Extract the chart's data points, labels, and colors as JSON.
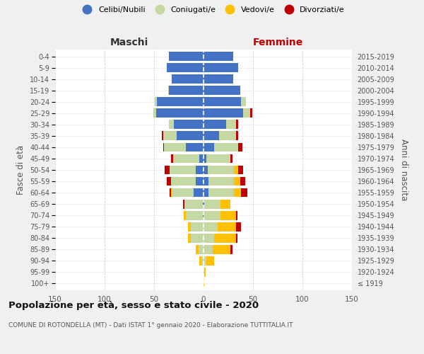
{
  "age_groups": [
    "100+",
    "95-99",
    "90-94",
    "85-89",
    "80-84",
    "75-79",
    "70-74",
    "65-69",
    "60-64",
    "55-59",
    "50-54",
    "45-49",
    "40-44",
    "35-39",
    "30-34",
    "25-29",
    "20-24",
    "15-19",
    "10-14",
    "5-9",
    "0-4"
  ],
  "birth_years": [
    "≤ 1919",
    "1920-1924",
    "1925-1929",
    "1930-1934",
    "1935-1939",
    "1940-1944",
    "1945-1949",
    "1950-1954",
    "1955-1959",
    "1960-1964",
    "1965-1969",
    "1970-1974",
    "1975-1979",
    "1980-1984",
    "1985-1989",
    "1990-1994",
    "1995-1999",
    "2000-2004",
    "2005-2009",
    "2010-2014",
    "2015-2019"
  ],
  "male": {
    "celibi": [
      0,
      0,
      0,
      0,
      0,
      0,
      1,
      1,
      10,
      8,
      8,
      4,
      18,
      27,
      30,
      48,
      47,
      35,
      32,
      37,
      35
    ],
    "coniugati": [
      0,
      0,
      2,
      5,
      13,
      13,
      17,
      18,
      22,
      25,
      26,
      27,
      22,
      14,
      5,
      3,
      2,
      1,
      0,
      0,
      0
    ],
    "vedovi": [
      0,
      0,
      2,
      3,
      3,
      3,
      2,
      0,
      1,
      0,
      0,
      0,
      0,
      0,
      0,
      0,
      0,
      0,
      0,
      0,
      0
    ],
    "divorziati": [
      0,
      0,
      0,
      0,
      0,
      0,
      0,
      2,
      1,
      4,
      5,
      2,
      1,
      1,
      0,
      0,
      0,
      0,
      0,
      0,
      0
    ]
  },
  "female": {
    "nubili": [
      0,
      0,
      0,
      0,
      0,
      0,
      0,
      1,
      5,
      5,
      4,
      3,
      11,
      16,
      23,
      40,
      38,
      37,
      30,
      35,
      30
    ],
    "coniugate": [
      0,
      1,
      3,
      9,
      11,
      14,
      17,
      16,
      26,
      26,
      27,
      24,
      24,
      17,
      10,
      7,
      5,
      0,
      0,
      0,
      0
    ],
    "vedove": [
      1,
      1,
      8,
      18,
      22,
      19,
      16,
      10,
      7,
      6,
      4,
      0,
      0,
      0,
      0,
      0,
      0,
      0,
      0,
      0,
      0
    ],
    "divorziate": [
      0,
      0,
      0,
      2,
      1,
      5,
      1,
      0,
      6,
      5,
      5,
      2,
      4,
      2,
      2,
      2,
      0,
      0,
      0,
      0,
      0
    ]
  },
  "colors": {
    "celibi": "#4472c4",
    "coniugati": "#c5d8a4",
    "vedovi": "#ffc000",
    "divorziati": "#c00000"
  },
  "title": "Popolazione per età, sesso e stato civile - 2020",
  "subtitle": "COMUNE DI ROTONDELLA (MT) - Dati ISTAT 1° gennaio 2020 - Elaborazione TUTTITALIA.IT",
  "xlabel_left": "Maschi",
  "xlabel_right": "Femmine",
  "ylabel_left": "Fasce di età",
  "ylabel_right": "Anni di nascita",
  "xlim": 150,
  "legend_labels": [
    "Celibi/Nubili",
    "Coniugati/e",
    "Vedovi/e",
    "Divorziati/e"
  ],
  "bg_color": "#f0f0f0",
  "plot_bg": "#ffffff",
  "grid_color": "#cccccc"
}
